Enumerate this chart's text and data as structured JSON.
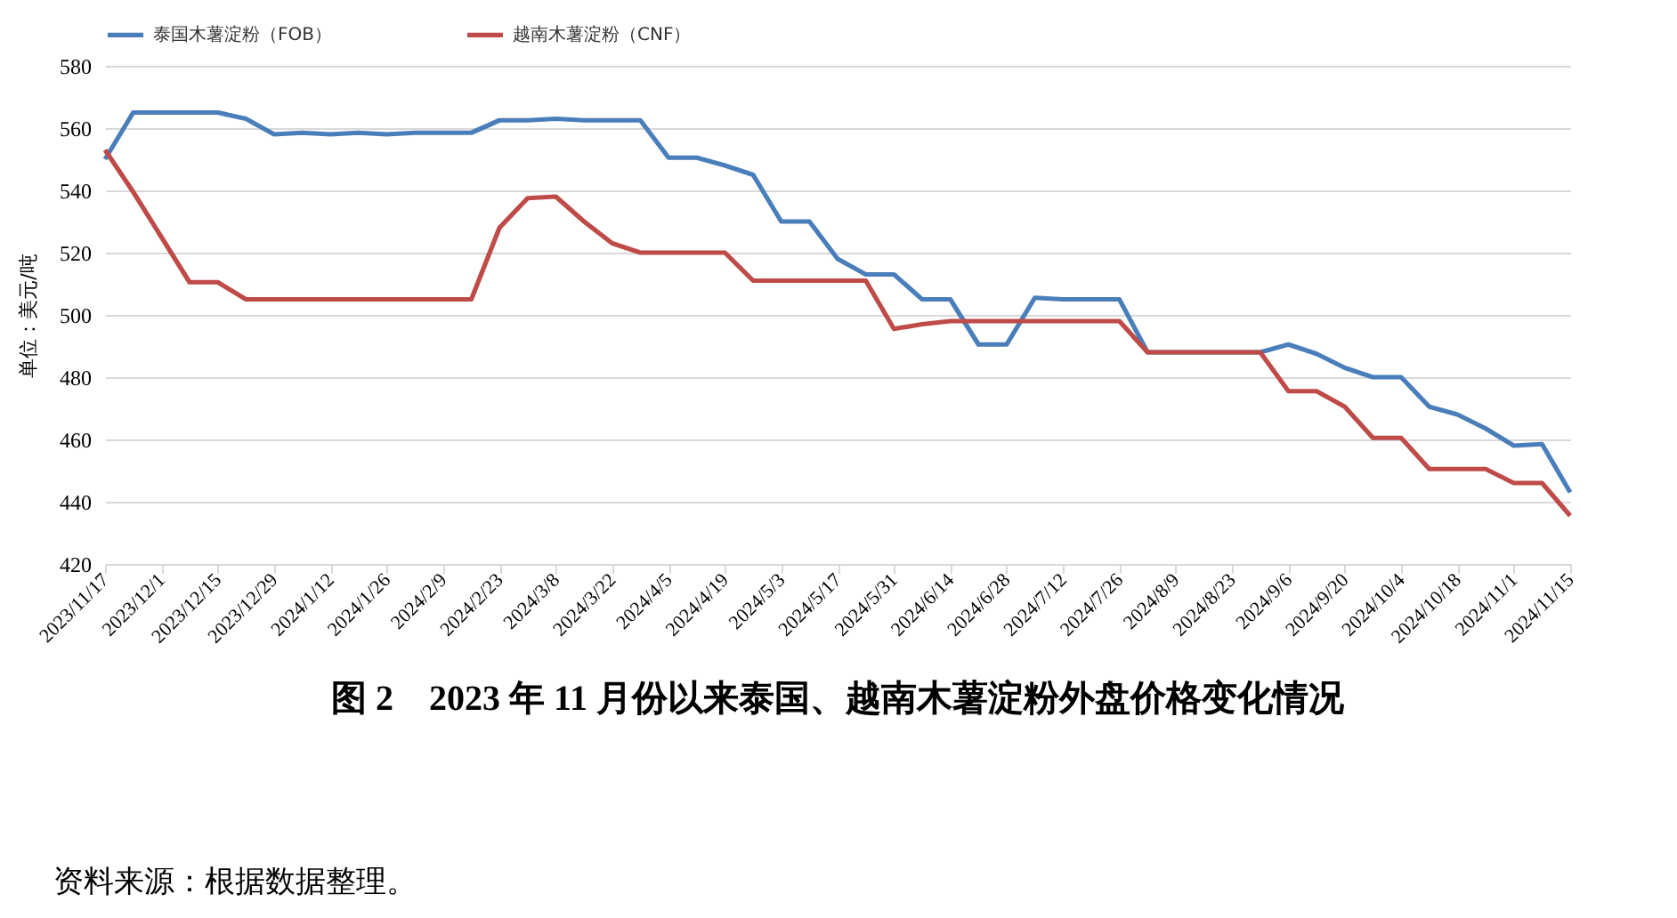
{
  "chart_data": {
    "type": "line",
    "title": "图 2　2023 年 11 月份以来泰国、越南木薯淀粉外盘价格变化情况",
    "ylabel": "单位：美元/吨",
    "annotations": [
      "资料来源：根据数据整理。"
    ],
    "x": [
      "2023-11-17",
      "2023-11-24",
      "2023-12-01",
      "2023-12-08",
      "2023-12-15",
      "2023-12-22",
      "2023-12-29",
      "2024-01-05",
      "2024-01-12",
      "2024-01-19",
      "2024-01-26",
      "2024-02-02",
      "2024-02-09",
      "2024-02-16",
      "2024-02-23",
      "2024-03-01",
      "2024-03-08",
      "2024-03-15",
      "2024-03-22",
      "2024-03-29",
      "2024-04-05",
      "2024-04-12",
      "2024-04-19",
      "2024-04-26",
      "2024-05-03",
      "2024-05-10",
      "2024-05-17",
      "2024-05-24",
      "2024-05-31",
      "2024-06-07",
      "2024-06-14",
      "2024-06-21",
      "2024-06-28",
      "2024-07-05",
      "2024-07-12",
      "2024-07-19",
      "2024-07-26",
      "2024-08-02",
      "2024-08-09",
      "2024-08-16",
      "2024-08-23",
      "2024-08-30",
      "2024-09-06",
      "2024-09-13",
      "2024-09-20",
      "2024-09-27",
      "2024-10-04",
      "2024-10-11",
      "2024-10-18",
      "2024-10-25",
      "2024-11-01",
      "2024-11-08",
      "2024-11-15"
    ],
    "series": [
      {
        "name": "泰国木薯淀粉（FOB）",
        "color": "#4a7ebb",
        "values": [
          550,
          565,
          565,
          565,
          565,
          563,
          558,
          558.5,
          558,
          558.5,
          558,
          558.5,
          558.5,
          558.5,
          562.5,
          562.5,
          563,
          562.5,
          562.5,
          562.5,
          550.5,
          550.5,
          548,
          545,
          530,
          530,
          518,
          513,
          513,
          505,
          505,
          490.5,
          490.5,
          505.5,
          505,
          505,
          505,
          488,
          488,
          488,
          488,
          488,
          490.5,
          487.5,
          483,
          480,
          480,
          470.5,
          468,
          463.5,
          458,
          458.5,
          443
        ]
      },
      {
        "name": "越南木薯淀粉（CNF）",
        "color": "#be4b48",
        "values": [
          553,
          539.5,
          525,
          510.5,
          510.5,
          505,
          505,
          505,
          505,
          505,
          505,
          505,
          505,
          505,
          528,
          537.5,
          538,
          530,
          523,
          520,
          520,
          520,
          520,
          511,
          511,
          511,
          511,
          511,
          495.5,
          497,
          498,
          498,
          498,
          498,
          498,
          498,
          498,
          488,
          488,
          488,
          488,
          488,
          475.5,
          475.5,
          470.5,
          460.5,
          460.5,
          450.5,
          450.5,
          450.5,
          446,
          446,
          435.5
        ]
      }
    ],
    "ylim": [
      420,
      580
    ],
    "yticks": [
      420,
      440,
      460,
      480,
      500,
      520,
      540,
      560,
      580
    ],
    "xlim": [
      "2023-11-17",
      "2024-11-15"
    ],
    "xticks": [
      {
        "value": "2023-11-17",
        "label": "2023/11/17"
      },
      {
        "value": "2023-12-01",
        "label": "2023/12/1"
      },
      {
        "value": "2023-12-15",
        "label": "2023/12/15"
      },
      {
        "value": "2023-12-29",
        "label": "2023/12/29"
      },
      {
        "value": "2024-01-12",
        "label": "2024/1/12"
      },
      {
        "value": "2024-01-26",
        "label": "2024/1/26"
      },
      {
        "value": "2024-02-09",
        "label": "2024/2/9"
      },
      {
        "value": "2024-02-23",
        "label": "2024/2/23"
      },
      {
        "value": "2024-03-08",
        "label": "2024/3/8"
      },
      {
        "value": "2024-03-22",
        "label": "2024/3/22"
      },
      {
        "value": "2024-04-05",
        "label": "2024/4/5"
      },
      {
        "value": "2024-04-19",
        "label": "2024/4/19"
      },
      {
        "value": "2024-05-03",
        "label": "2024/5/3"
      },
      {
        "value": "2024-05-17",
        "label": "2024/5/17"
      },
      {
        "value": "2024-05-31",
        "label": "2024/5/31"
      },
      {
        "value": "2024-06-14",
        "label": "2024/6/14"
      },
      {
        "value": "2024-06-28",
        "label": "2024/6/28"
      },
      {
        "value": "2024-07-12",
        "label": "2024/7/12"
      },
      {
        "value": "2024-07-26",
        "label": "2024/7/26"
      },
      {
        "value": "2024-08-09",
        "label": "2024/8/9"
      },
      {
        "value": "2024-08-23",
        "label": "2024/8/23"
      },
      {
        "value": "2024-09-06",
        "label": "2024/9/6"
      },
      {
        "value": "2024-09-20",
        "label": "2024/9/20"
      },
      {
        "value": "2024-10-04",
        "label": "2024/10/4"
      },
      {
        "value": "2024-10-18",
        "label": "2024/10/18"
      },
      {
        "value": "2024-11-01",
        "label": "2024/11/1"
      },
      {
        "value": "2024-11-15",
        "label": "2024/11/15"
      }
    ],
    "grid": "y",
    "legend": "top",
    "marker": "none",
    "line_style": "solid"
  }
}
